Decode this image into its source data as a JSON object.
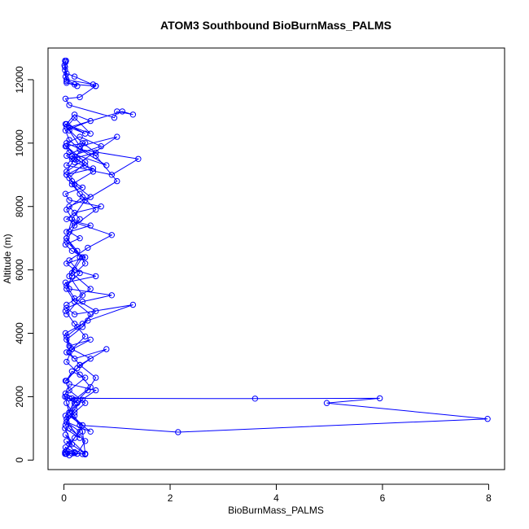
{
  "chart_data": {
    "type": "line",
    "title": "ATOM3 Southbound BioBurnMass_PALMS",
    "xlabel": "BioBurnMass_PALMS",
    "ylabel": "Altitude (m)",
    "xlim": [
      -0.3,
      8.3
    ],
    "ylim": [
      -300,
      13000
    ],
    "x_ticks": [
      0,
      2,
      4,
      6,
      8
    ],
    "x_tick_labels": [
      "0",
      "2",
      "4",
      "6",
      "8"
    ],
    "y_ticks": [
      0,
      2000,
      4000,
      6000,
      8000,
      10000,
      12000
    ],
    "y_tick_labels": [
      "0",
      "2000",
      "4000",
      "6000",
      "8000",
      "10000",
      "12000"
    ],
    "series_color": "#0000ff",
    "marker": "open-circle",
    "grid": false,
    "series": [
      {
        "x": [
          0.02,
          0.05,
          0.1,
          0.03,
          0.2,
          0.05,
          0.4,
          0.03,
          0.15,
          0.02,
          0.3,
          0.05,
          0.5,
          0.1,
          0.03,
          0.2,
          0.05,
          0.35,
          0.1,
          0.02,
          0.25,
          0.6,
          0.1,
          0.03,
          0.4,
          0.15,
          0.05,
          0.3,
          0.8,
          0.2,
          0.05,
          0.5,
          0.1,
          0.03,
          0.25,
          0.45,
          1.3,
          0.2,
          0.05,
          0.35,
          0.9,
          0.1,
          0.03,
          0.6,
          0.2,
          0.05,
          0.4,
          0.15,
          0.03,
          0.3,
          0.1,
          0.5,
          0.05,
          0.2,
          0.7,
          0.1,
          0.03,
          0.35,
          0.15,
          0.05,
          0.55,
          0.2,
          0.05,
          0.3,
          0.8,
          0.1,
          0.03,
          0.4,
          0.2,
          0.05,
          1.0,
          0.3,
          0.1,
          0.03,
          0.5,
          0.2,
          0.05,
          0.35,
          0.6,
          0.15,
          0.05,
          0.9,
          1.4,
          0.3,
          0.1,
          0.03,
          0.5,
          0.2,
          0.05,
          0.4,
          0.1,
          1.1,
          1.3,
          1.0,
          0.95,
          0.1,
          0.03,
          0.3,
          0.6,
          0.2,
          0.05,
          0.25,
          0.05,
          0.55,
          0.6,
          0.2,
          0.05,
          0.02,
          0.03,
          0.04,
          0.01,
          0.02,
          0.03,
          0.05,
          0.02
        ],
        "y": [
          200,
          300,
          150,
          400,
          250,
          600,
          200,
          800,
          500,
          1000,
          700,
          1200,
          900,
          1400,
          1100,
          1600,
          1300,
          1900,
          1500,
          2000,
          1800,
          2200,
          2400,
          2100,
          2600,
          2800,
          2500,
          3000,
          3500,
          3200,
          3400,
          3800,
          3600,
          4000,
          4200,
          4400,
          4900,
          4600,
          4800,
          5000,
          5200,
          5400,
          5600,
          5800,
          6000,
          6200,
          6400,
          6600,
          6800,
          7000,
          7200,
          7400,
          7600,
          7800,
          8000,
          8200,
          8400,
          8600,
          8800,
          9000,
          9200,
          9400,
          9600,
          9800,
          9300,
          9700,
          9900,
          10000,
          9500,
          9100,
          10200,
          9900,
          10400,
          10600,
          10300,
          10800,
          10500,
          10000,
          9700,
          9500,
          9300,
          9000,
          9500,
          9800,
          10100,
          10400,
          10700,
          10900,
          10600,
          10300,
          10500,
          11000,
          10900,
          11000,
          10800,
          11200,
          11400,
          11450,
          11800,
          11850,
          11900,
          11800,
          12000,
          11850,
          11800,
          12100,
          12200,
          12400,
          12550,
          12600,
          12450,
          12300,
          12100,
          11950,
          12600
        ]
      },
      {
        "x": [
          0.02,
          0.1,
          0.3,
          0.05,
          0.2,
          0.4,
          0.1,
          0.03,
          0.25,
          0.5,
          0.15,
          0.05,
          0.35,
          0.6,
          0.2,
          0.05,
          0.3,
          0.1,
          0.45,
          0.9,
          0.2,
          0.05,
          0.35,
          0.15,
          0.55,
          0.25,
          0.05,
          0.4,
          0.1,
          0.3,
          0.6,
          0.2,
          0.05,
          0.35,
          0.15,
          0.5,
          0.05
        ],
        "y": [
          250,
          500,
          900,
          1200,
          1500,
          1800,
          2200,
          2500,
          2900,
          3200,
          3500,
          3900,
          4300,
          4700,
          5100,
          5500,
          5900,
          6300,
          6700,
          7100,
          7500,
          7900,
          8300,
          8700,
          9100,
          9500,
          9900,
          9400,
          8900,
          8400,
          7900,
          7400,
          6900,
          6400,
          5900,
          5400,
          4900
        ]
      },
      {
        "x": [
          0.03,
          0.2,
          0.4,
          0.15,
          0.05,
          0.3,
          0.5,
          0.2,
          0.1,
          0.35,
          0.2,
          0.05,
          0.25,
          0.4,
          0.1,
          0.03,
          0.2,
          0.45,
          0.6,
          0.3,
          0.1,
          0.05,
          0.35,
          0.5,
          0.2,
          0.05,
          0.15,
          0.4,
          0.25,
          0.05
        ],
        "y": [
          4700,
          4300,
          3900,
          3500,
          3100,
          2700,
          2300,
          1900,
          1500,
          1100,
          700,
          300,
          200,
          600,
          1000,
          1400,
          1800,
          2200,
          2600,
          3000,
          3400,
          3800,
          4200,
          4600,
          5000,
          5400,
          5800,
          6200,
          6600,
          7000
        ]
      },
      {
        "x": [
          0.05,
          0.3,
          0.1,
          0.5,
          0.2,
          0.05,
          0.4,
          0.15,
          0.7,
          0.3,
          0.05,
          0.6,
          1.0,
          0.4,
          0.15,
          0.05,
          0.3,
          0.1,
          0.35,
          0.05
        ],
        "y": [
          7200,
          7600,
          8000,
          8300,
          8700,
          9000,
          9300,
          9600,
          9900,
          10200,
          10000,
          9600,
          8800,
          8200,
          7600,
          7000,
          6400,
          5800,
          5200,
          4600
        ]
      },
      {
        "x": [
          0.05,
          0.1,
          0.2,
          0.15,
          3.6,
          5.95,
          4.95,
          7.98,
          2.15,
          0.3,
          0.1,
          0.05,
          0.2,
          0.35,
          0.4,
          0.03
        ],
        "y": [
          2000,
          1950,
          1900,
          1950,
          1940,
          1950,
          1800,
          1300,
          880,
          1100,
          1500,
          1800,
          1400,
          900,
          200,
          200
        ]
      },
      {
        "x": [
          0.05,
          0.2,
          0.4,
          0.35,
          0.15,
          0.03
        ],
        "y": [
          200,
          220,
          180,
          190,
          210,
          200
        ]
      }
    ]
  }
}
